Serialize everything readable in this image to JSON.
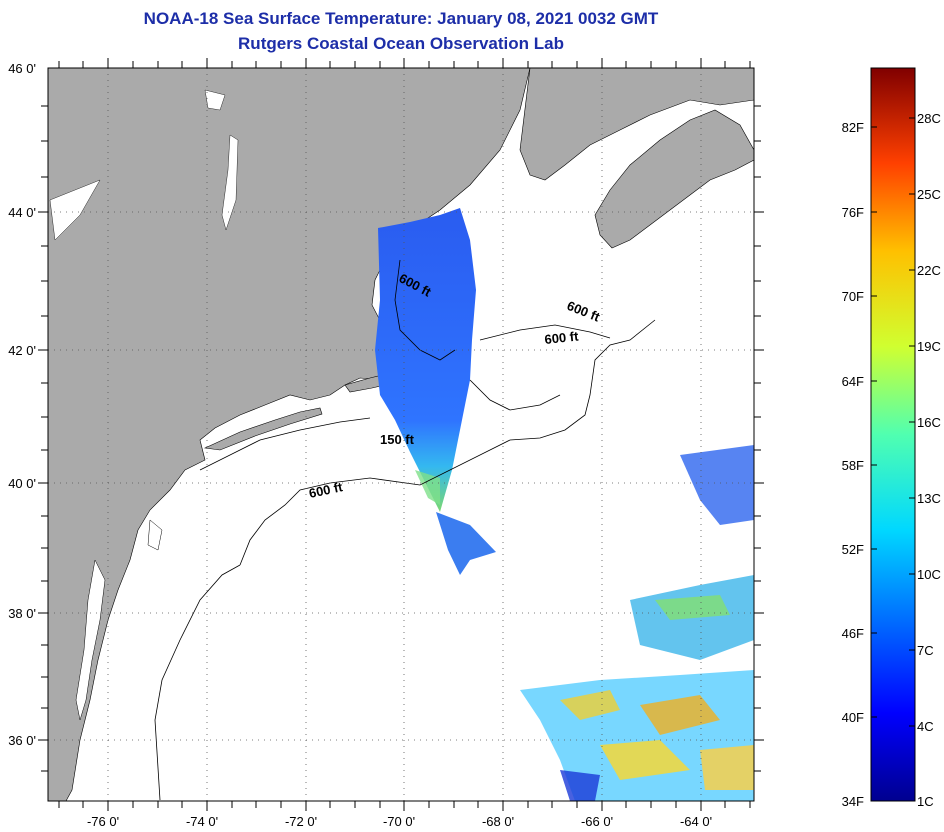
{
  "title": "NOAA-18 Sea Surface Temperature:  January 08, 2021 0032 GMT",
  "subtitle": "Rutgers Coastal Ocean Observation Lab",
  "lat_labels": [
    "46 0'",
    "44 0'",
    "42 0'",
    "40 0'",
    "38 0'",
    "36 0'"
  ],
  "lon_labels": [
    "-76 0'",
    "-74 0'",
    "-72 0'",
    "-70 0'",
    "-68 0'",
    "-66 0'",
    "-64 0'"
  ],
  "contour_labels": [
    "600 ft",
    "600 ft",
    "600 ft",
    "150 ft",
    "600 ft"
  ],
  "colorbar": {
    "f_labels": [
      "82F",
      "76F",
      "70F",
      "64F",
      "58F",
      "52F",
      "46F",
      "40F",
      "34F"
    ],
    "c_labels": [
      "28C",
      "25C",
      "22C",
      "19C",
      "16C",
      "13C",
      "10C",
      "7C",
      "4C",
      "1C"
    ]
  },
  "colors": {
    "title": "#1d2ea8",
    "land": "#aaaaaa",
    "ocean": "#ffffff"
  }
}
